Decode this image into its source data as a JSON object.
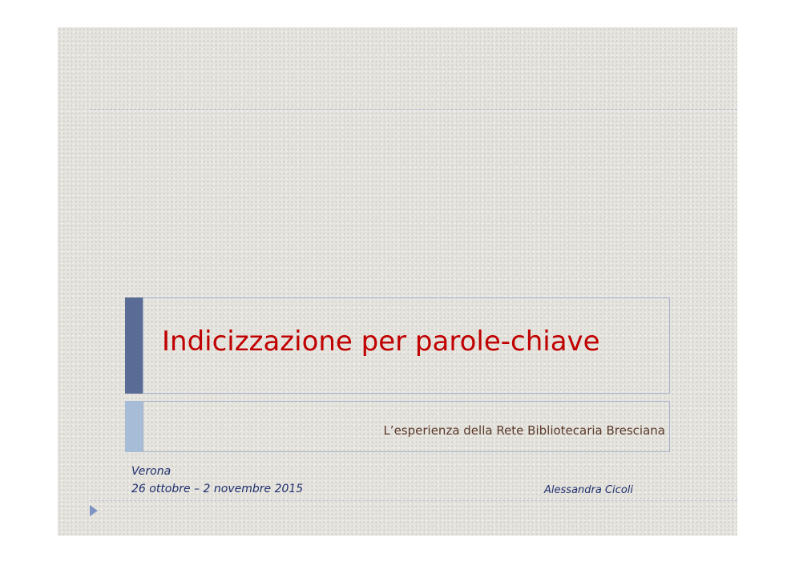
{
  "slide": {
    "title": "Indicizzazione per parole-chiave",
    "subtitle": "L’esperienza della Rete Bibliotecaria Bresciana",
    "place": "Verona",
    "dates": "26 ottobre – 2 novembre 2015",
    "author": "Alessandra Cicoli"
  }
}
